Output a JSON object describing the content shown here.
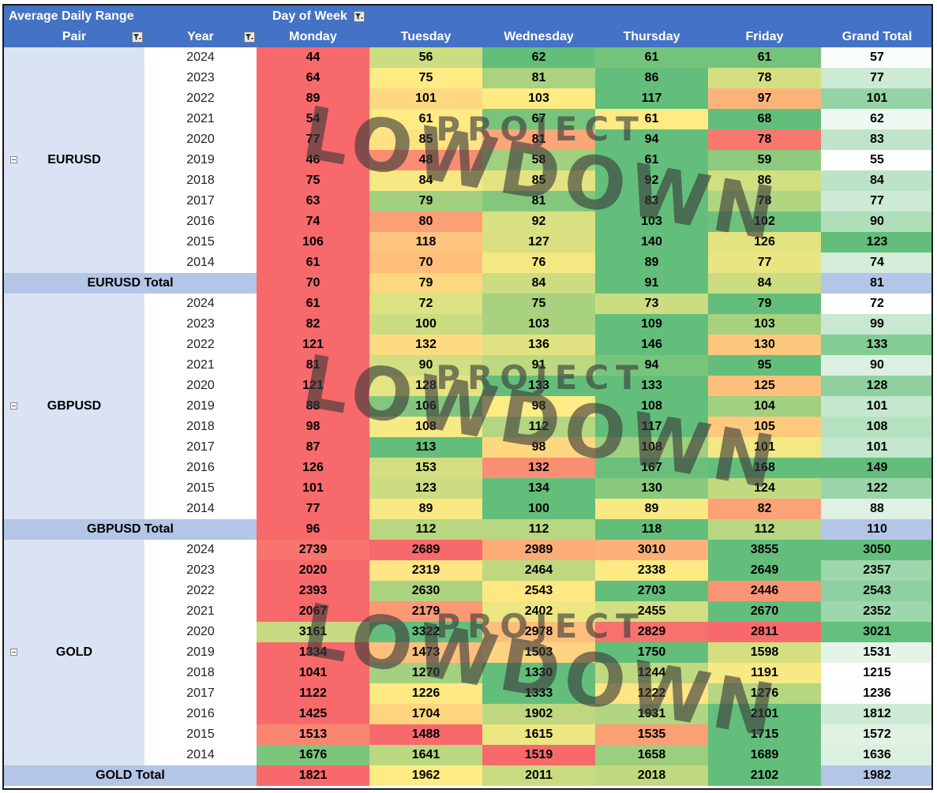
{
  "header": {
    "title": "Average Daily Range",
    "column_field": "Day of Week",
    "pair_label": "Pair",
    "year_label": "Year",
    "days": [
      "Monday",
      "Tuesday",
      "Wednesday",
      "Thursday",
      "Friday"
    ],
    "grand_total_label": "Grand Total"
  },
  "watermark": {
    "line1": "PROJECT",
    "line2": "LOWDOWN"
  },
  "groups": [
    {
      "pair": "EURUSD",
      "total_label": "EURUSD Total",
      "rows": [
        {
          "year": "2024",
          "values": [
            "44",
            "56",
            "62",
            "61",
            "61"
          ],
          "gt": "57"
        },
        {
          "year": "2023",
          "values": [
            "64",
            "75",
            "81",
            "86",
            "78"
          ],
          "gt": "77"
        },
        {
          "year": "2022",
          "values": [
            "89",
            "101",
            "103",
            "117",
            "97"
          ],
          "gt": "101"
        },
        {
          "year": "2021",
          "values": [
            "54",
            "61",
            "67",
            "61",
            "68"
          ],
          "gt": "62"
        },
        {
          "year": "2020",
          "values": [
            "77",
            "85",
            "81",
            "94",
            "78"
          ],
          "gt": "83"
        },
        {
          "year": "2019",
          "values": [
            "46",
            "48",
            "58",
            "61",
            "59"
          ],
          "gt": "55"
        },
        {
          "year": "2018",
          "values": [
            "75",
            "84",
            "85",
            "92",
            "86"
          ],
          "gt": "84"
        },
        {
          "year": "2017",
          "values": [
            "63",
            "79",
            "81",
            "83",
            "78"
          ],
          "gt": "77"
        },
        {
          "year": "2016",
          "values": [
            "74",
            "80",
            "92",
            "103",
            "102"
          ],
          "gt": "90"
        },
        {
          "year": "2015",
          "values": [
            "106",
            "118",
            "127",
            "140",
            "126"
          ],
          "gt": "123"
        },
        {
          "year": "2014",
          "values": [
            "61",
            "70",
            "76",
            "89",
            "77"
          ],
          "gt": "74"
        }
      ],
      "total": {
        "values": [
          "70",
          "79",
          "84",
          "91",
          "84"
        ],
        "gt": "81"
      }
    },
    {
      "pair": "GBPUSD",
      "total_label": "GBPUSD Total",
      "rows": [
        {
          "year": "2024",
          "values": [
            "61",
            "72",
            "75",
            "73",
            "79"
          ],
          "gt": "72"
        },
        {
          "year": "2023",
          "values": [
            "82",
            "100",
            "103",
            "109",
            "103"
          ],
          "gt": "99"
        },
        {
          "year": "2022",
          "values": [
            "121",
            "132",
            "136",
            "146",
            "130"
          ],
          "gt": "133"
        },
        {
          "year": "2021",
          "values": [
            "81",
            "90",
            "91",
            "94",
            "95"
          ],
          "gt": "90"
        },
        {
          "year": "2020",
          "values": [
            "121",
            "128",
            "133",
            "133",
            "125"
          ],
          "gt": "128"
        },
        {
          "year": "2019",
          "values": [
            "88",
            "106",
            "98",
            "108",
            "104"
          ],
          "gt": "101"
        },
        {
          "year": "2018",
          "values": [
            "98",
            "108",
            "112",
            "117",
            "105"
          ],
          "gt": "108"
        },
        {
          "year": "2017",
          "values": [
            "87",
            "113",
            "98",
            "108",
            "101"
          ],
          "gt": "101"
        },
        {
          "year": "2016",
          "values": [
            "126",
            "153",
            "132",
            "167",
            "168"
          ],
          "gt": "149"
        },
        {
          "year": "2015",
          "values": [
            "101",
            "123",
            "134",
            "130",
            "124"
          ],
          "gt": "122"
        },
        {
          "year": "2014",
          "values": [
            "77",
            "89",
            "100",
            "89",
            "82"
          ],
          "gt": "88"
        }
      ],
      "total": {
        "values": [
          "96",
          "112",
          "112",
          "118",
          "112"
        ],
        "gt": "110"
      }
    },
    {
      "pair": "GOLD",
      "total_label": "GOLD Total",
      "rows": [
        {
          "year": "2024",
          "values": [
            "2739",
            "2689",
            "2989",
            "3010",
            "3855"
          ],
          "gt": "3050"
        },
        {
          "year": "2023",
          "values": [
            "2020",
            "2319",
            "2464",
            "2338",
            "2649"
          ],
          "gt": "2357"
        },
        {
          "year": "2022",
          "values": [
            "2393",
            "2630",
            "2543",
            "2703",
            "2446"
          ],
          "gt": "2543"
        },
        {
          "year": "2021",
          "values": [
            "2067",
            "2179",
            "2402",
            "2455",
            "2670"
          ],
          "gt": "2352"
        },
        {
          "year": "2020",
          "values": [
            "3161",
            "3322",
            "2978",
            "2829",
            "2811"
          ],
          "gt": "3021"
        },
        {
          "year": "2019",
          "values": [
            "1334",
            "1473",
            "1503",
            "1750",
            "1598"
          ],
          "gt": "1531"
        },
        {
          "year": "2018",
          "values": [
            "1041",
            "1270",
            "1330",
            "1244",
            "1191"
          ],
          "gt": "1215"
        },
        {
          "year": "2017",
          "values": [
            "1122",
            "1226",
            "1333",
            "1222",
            "1276"
          ],
          "gt": "1236"
        },
        {
          "year": "2016",
          "values": [
            "1425",
            "1704",
            "1902",
            "1931",
            "2101"
          ],
          "gt": "1812"
        },
        {
          "year": "2015",
          "values": [
            "1513",
            "1488",
            "1615",
            "1535",
            "1715"
          ],
          "gt": "1572"
        },
        {
          "year": "2014",
          "values": [
            "1676",
            "1641",
            "1519",
            "1658",
            "1689"
          ],
          "gt": "1636"
        }
      ],
      "total": {
        "values": [
          "1821",
          "1962",
          "2011",
          "2018",
          "2102"
        ],
        "gt": "1982"
      }
    }
  ],
  "colors": {
    "header_bg": "#4472c4",
    "pair_bg": "#dae3f3",
    "total_bg": "#b4c6e7",
    "scale_low": "#f8696b",
    "scale_mid": "#ffeb84",
    "scale_high": "#63be7b",
    "gt_low": "#ffffff",
    "gt_high": "#63be7b",
    "watermark": "#3a3a3a"
  }
}
